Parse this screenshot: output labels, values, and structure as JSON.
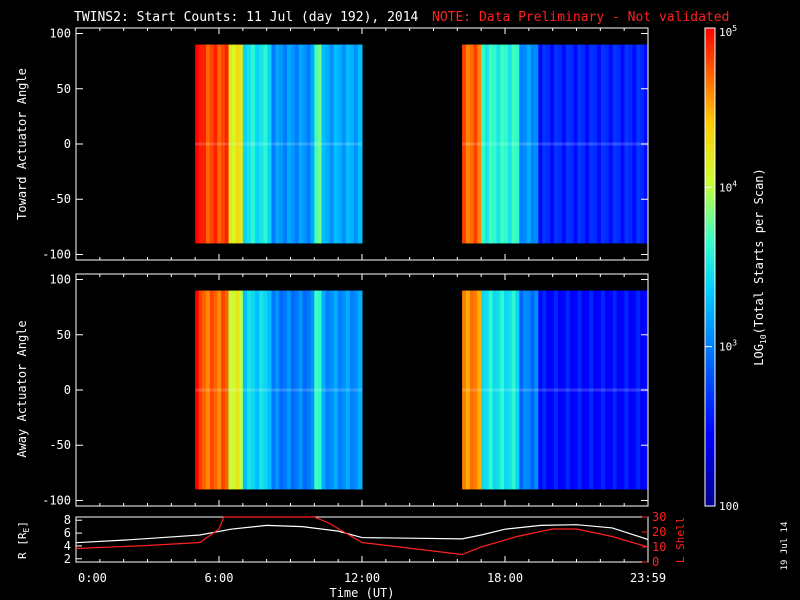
{
  "colors": {
    "background": "#000000",
    "foreground": "#ffffff",
    "note": "#ff2020",
    "lshell": "#ff2020",
    "rline": "#ffffff"
  },
  "header": {
    "title": "TWINS2: Start Counts: 11 Jul (day 192), 2014",
    "note": "NOTE: Data Preliminary - Not validated"
  },
  "side_date": "19 Jul 14",
  "chart_data": [
    {
      "type": "heatmap",
      "ylabel": "Toward Actuator Angle",
      "ylim": [
        -105,
        105
      ],
      "yticks": [
        100,
        50,
        0,
        -50,
        -100
      ],
      "xlim_hours": [
        0,
        24
      ],
      "data_gaps_hours": [
        [
          0,
          5.0
        ],
        [
          12.0,
          16.2
        ]
      ],
      "log10_counts_profile": [
        {
          "from": 5.0,
          "to": 5.3,
          "v": 4.9
        },
        {
          "from": 5.3,
          "to": 6.4,
          "v": 4.8
        },
        {
          "from": 6.4,
          "to": 7.0,
          "v": 4.2
        },
        {
          "from": 7.0,
          "to": 8.2,
          "v": 3.5
        },
        {
          "from": 8.2,
          "to": 10.0,
          "v": 3.1
        },
        {
          "from": 10.0,
          "to": 10.3,
          "v": 3.7
        },
        {
          "from": 10.3,
          "to": 12.0,
          "v": 3.2
        },
        {
          "from": 16.2,
          "to": 17.0,
          "v": 4.7
        },
        {
          "from": 17.0,
          "to": 18.6,
          "v": 3.6
        },
        {
          "from": 18.6,
          "to": 19.4,
          "v": 3.1
        },
        {
          "from": 19.4,
          "to": 24.0,
          "v": 2.6
        }
      ]
    },
    {
      "type": "heatmap",
      "ylabel": "Away Actuator Angle",
      "ylim": [
        -105,
        105
      ],
      "yticks": [
        100,
        50,
        0,
        -50,
        -100
      ],
      "xlim_hours": [
        0,
        24
      ],
      "data_gaps_hours": [
        [
          0,
          5.0
        ],
        [
          12.0,
          16.2
        ]
      ],
      "log10_counts_profile": [
        {
          "from": 5.0,
          "to": 5.3,
          "v": 4.9
        },
        {
          "from": 5.3,
          "to": 6.4,
          "v": 4.7
        },
        {
          "from": 6.4,
          "to": 7.0,
          "v": 4.1
        },
        {
          "from": 7.0,
          "to": 8.2,
          "v": 3.4
        },
        {
          "from": 8.2,
          "to": 10.0,
          "v": 3.0
        },
        {
          "from": 10.0,
          "to": 10.3,
          "v": 3.6
        },
        {
          "from": 10.3,
          "to": 12.0,
          "v": 3.1
        },
        {
          "from": 16.2,
          "to": 17.0,
          "v": 4.6
        },
        {
          "from": 17.0,
          "to": 18.6,
          "v": 3.5
        },
        {
          "from": 18.6,
          "to": 19.4,
          "v": 3.0
        },
        {
          "from": 19.4,
          "to": 24.0,
          "v": 2.5
        }
      ]
    },
    {
      "type": "line",
      "ylabel": "R [R",
      "ylabel_sub": "E",
      "ylabel_tail": "]",
      "y2label": "L Shell",
      "ylim": [
        1.5,
        8.5
      ],
      "yticks": [
        "8",
        "6",
        "4",
        "2"
      ],
      "y2lim": [
        0,
        30
      ],
      "y2ticks": [
        "30",
        "20",
        "10",
        "0"
      ],
      "xlabel": "Time (UT)",
      "xticks": [
        "0:00",
        "6:00",
        "12:00",
        "18:00",
        "23:59"
      ],
      "series": [
        {
          "role": "R",
          "x": [
            0,
            2,
            4,
            5.2,
            6.5,
            8,
            9.5,
            11,
            12,
            14,
            16.2,
            17,
            18,
            19.5,
            21,
            22.5,
            24
          ],
          "y": [
            4.5,
            4.9,
            5.4,
            5.7,
            6.6,
            7.2,
            7.0,
            6.3,
            5.3,
            5.2,
            5.1,
            5.7,
            6.6,
            7.2,
            7.3,
            6.8,
            5.0
          ]
        },
        {
          "role": "L",
          "x": [
            0,
            3,
            5.2,
            6.0,
            6.2,
            10.0,
            10.6,
            12.0,
            16.2,
            17,
            18.5,
            20,
            21,
            22.5,
            24
          ],
          "y": [
            9,
            11,
            13,
            22,
            31,
            31,
            26,
            13,
            5,
            10,
            17,
            22,
            22,
            17,
            10
          ]
        }
      ]
    }
  ],
  "colorbar": {
    "label_prefix": "LOG",
    "label_sub": "10",
    "label_suffix": "(Total Starts per Scan)",
    "ticks": [
      {
        "base": "10",
        "exp": "5",
        "log": 5.0
      },
      {
        "base": "10",
        "exp": "4",
        "log": 4.0
      },
      {
        "base": "10",
        "exp": "3",
        "log": 3.0
      },
      {
        "base": "100",
        "exp": "",
        "log": 2.0
      }
    ],
    "range_log": [
      2.0,
      5.0
    ]
  }
}
